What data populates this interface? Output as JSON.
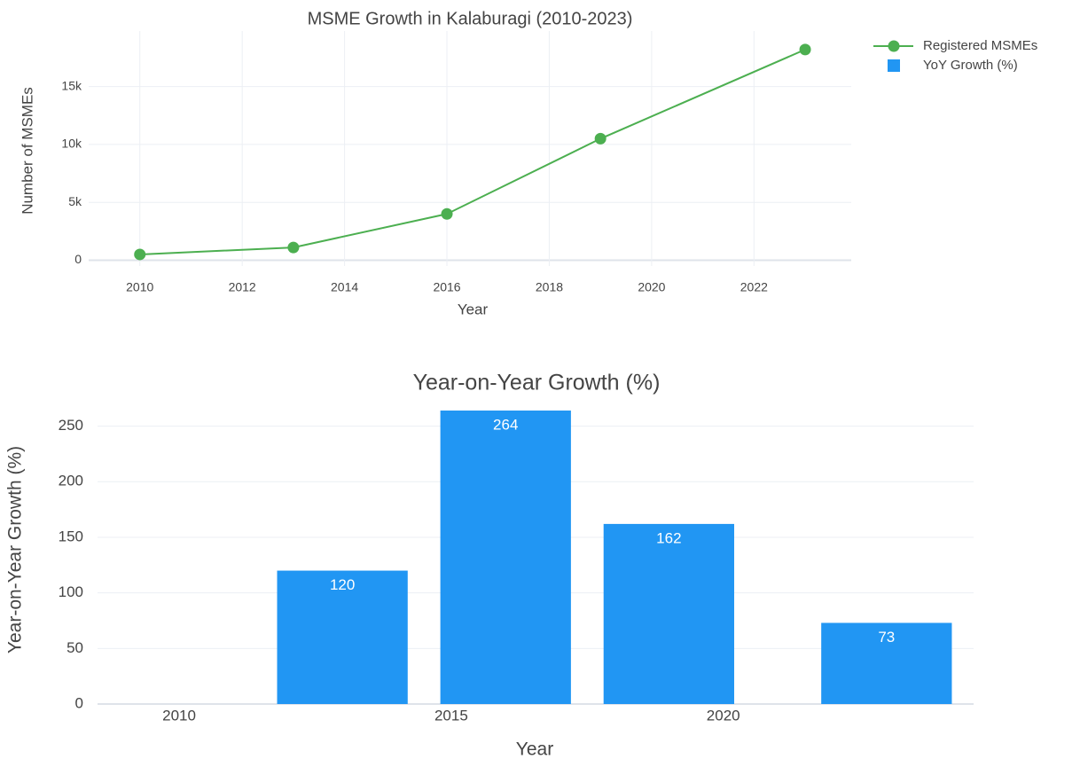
{
  "chart_data": [
    {
      "type": "line",
      "title": "MSME Growth in Kalaburagi (2010-2023)",
      "x_label": "Year",
      "y_label": "Number of MSMEs",
      "x": [
        2010,
        2013,
        2016,
        2019,
        2023
      ],
      "series": [
        {
          "name": "Registered MSMEs",
          "color": "#4caf50",
          "values": [
            500,
            1100,
            4000,
            10500,
            18200
          ]
        }
      ],
      "xlim": [
        2009,
        2023.9
      ],
      "xticks": [
        2010,
        2012,
        2014,
        2016,
        2018,
        2020,
        2022
      ],
      "ylim": [
        -500,
        19800
      ],
      "yticks": [
        0,
        {
          "value": 5000,
          "label": "5k"
        },
        {
          "value": 10000,
          "label": "10k"
        },
        {
          "value": 15000,
          "label": "15k"
        }
      ],
      "xgrid": true,
      "ygrid": true,
      "legend": "right"
    },
    {
      "type": "bar",
      "title": "Year-on-Year Growth (%)",
      "x_label": "Year",
      "y_label": "Year-on-Year Growth (%)",
      "x": [
        2010,
        2013,
        2016,
        2019,
        2023
      ],
      "series": [
        {
          "name": "YoY Growth (%)",
          "color": "#2196f3",
          "values": [
            null,
            120,
            264,
            162,
            73
          ]
        }
      ],
      "bar_width": 2.4,
      "xlim": [
        2008.5,
        2024.6
      ],
      "xticks": [
        2010,
        2015,
        2020
      ],
      "ylim": [
        0,
        268
      ],
      "yticks": [
        0,
        50,
        100,
        150,
        200,
        250
      ],
      "xgrid": false,
      "ygrid": true
    }
  ]
}
